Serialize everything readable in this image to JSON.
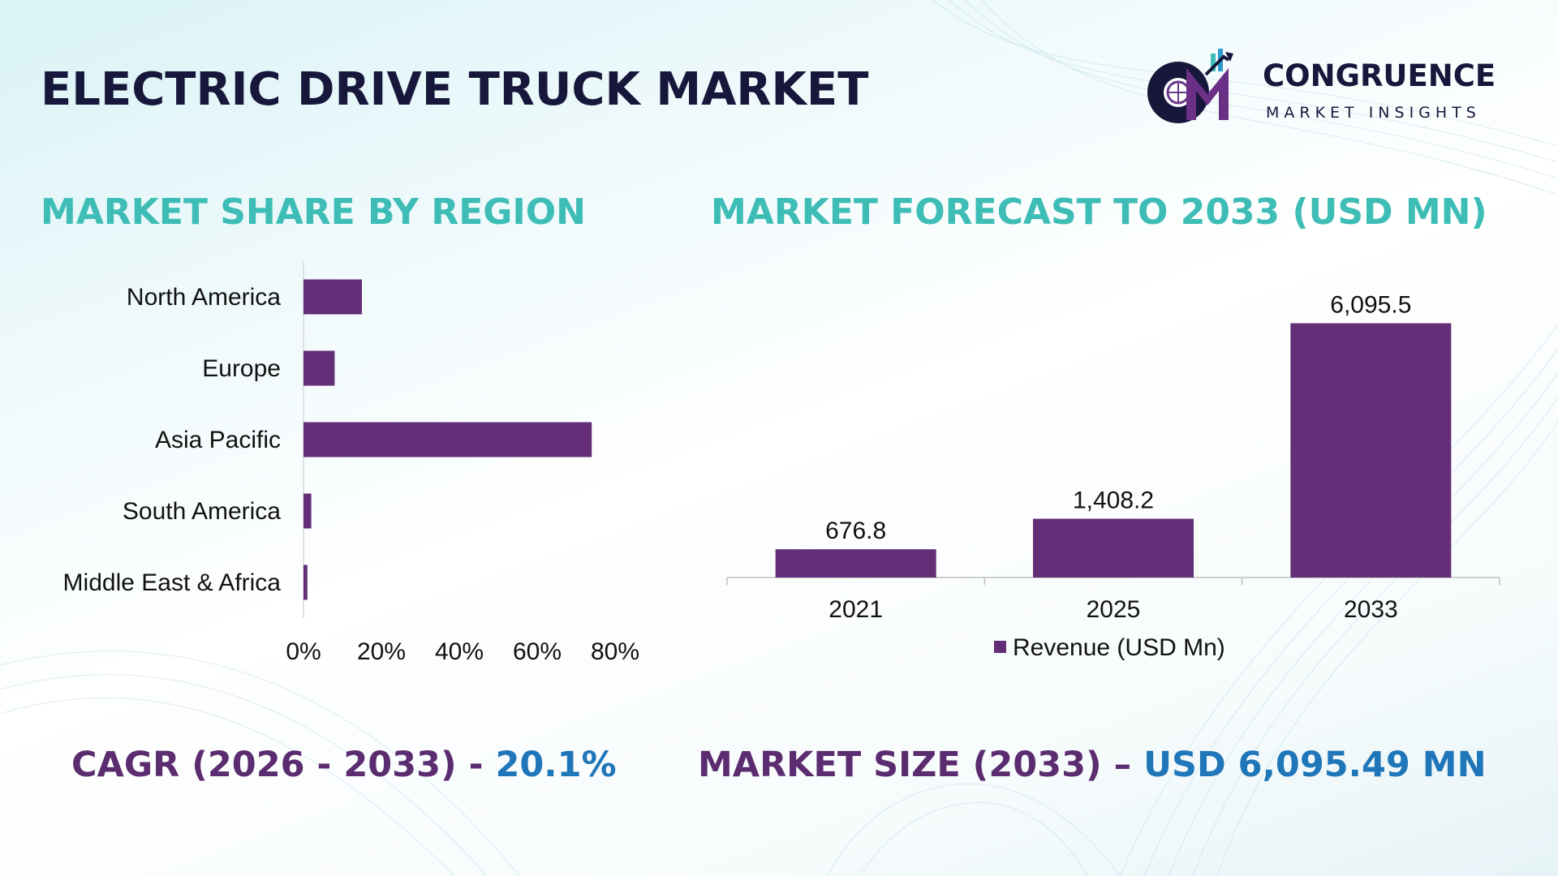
{
  "header": {
    "title": "ELECTRIC DRIVE TRUCK MARKET"
  },
  "logo": {
    "name": "CONGRUENCE",
    "tagline": "MARKET INSIGHTS"
  },
  "sections": {
    "left_title": "MARKET SHARE BY REGION",
    "right_title": "MARKET FORECAST TO 2033 (USD MN)"
  },
  "footer": {
    "cagr_label": "CAGR (2026 - 2033) - ",
    "cagr_value": "20.1%",
    "size_label": "MARKET SIZE (2033) – ",
    "size_value": "USD 6,095.49 MN"
  },
  "colors": {
    "bar": "#632d77",
    "title": "#17173b",
    "accent": "#3dbdb5",
    "highlight": "#1f76b8",
    "footer_text": "#5b2c6f"
  },
  "chart_data": [
    {
      "type": "bar",
      "orientation": "horizontal",
      "categories": [
        "North America",
        "Europe",
        "Asia Pacific",
        "South America",
        "Middle East & Africa"
      ],
      "values": [
        15,
        8,
        74,
        2,
        1
      ],
      "unit": "%",
      "xlim": [
        0,
        80
      ],
      "xticks": [
        "0%",
        "20%",
        "40%",
        "60%",
        "80%"
      ],
      "grid": false
    },
    {
      "type": "bar",
      "categories": [
        "2021",
        "2025",
        "2033"
      ],
      "series": [
        {
          "name": "Revenue (USD Mn)",
          "values": [
            676.8,
            1408.2,
            6095.5
          ]
        }
      ],
      "data_labels": [
        "676.8",
        "1,408.2",
        "6,095.5"
      ],
      "ylim": [
        0,
        7000
      ],
      "legend": "bottom",
      "grid": false
    }
  ]
}
